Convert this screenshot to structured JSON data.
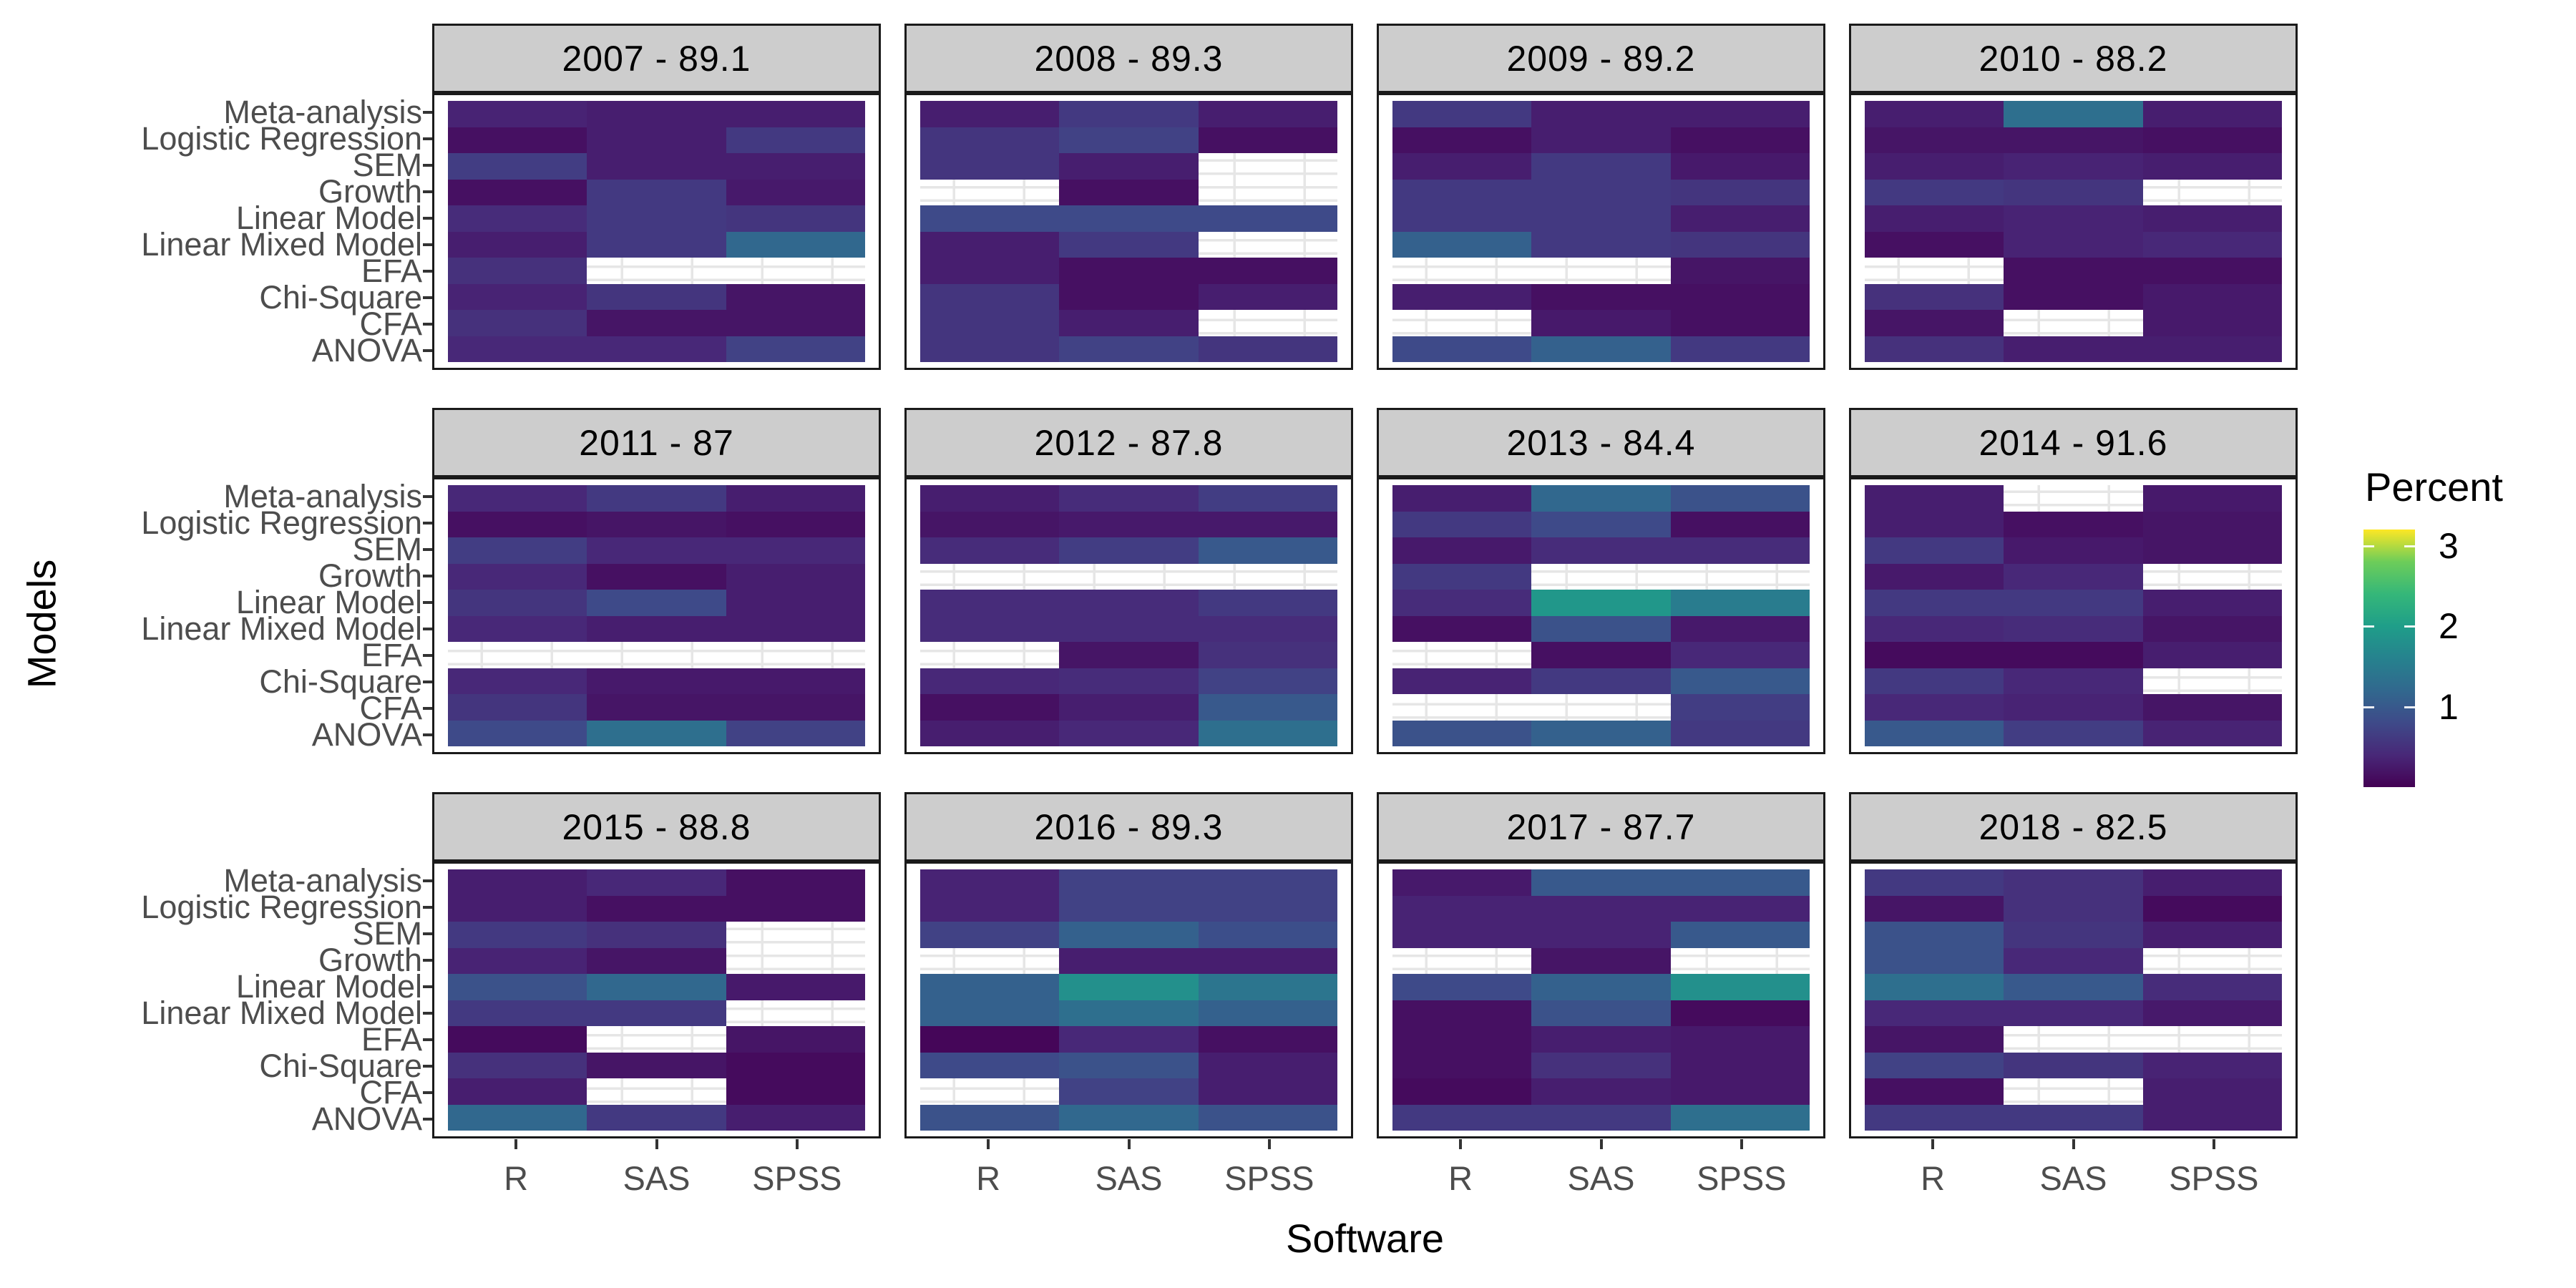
{
  "page": {
    "background": "#ffffff"
  },
  "chart": {
    "x_axis_title": "Software",
    "y_axis_title": "Models",
    "legend_title": "Percent"
  },
  "colors": {
    "strip_background": "#cdcdcd",
    "panel_border": "#1a1a1a",
    "grid_line": "#e6e6e6",
    "axis_text": "#4d4d4d",
    "title_text": "#000000",
    "na_cell": "#ffffff",
    "viridis_low": "#440154",
    "viridis_high": "#fde725"
  },
  "chart_data": {
    "type": "heatmap",
    "title": "",
    "xlabel": "Software",
    "ylabel": "Models",
    "grid": true,
    "legend_position": "right",
    "x_categories": [
      "R",
      "SAS",
      "SPSS"
    ],
    "y_categories": [
      "Meta-analysis",
      "Logistic Regression",
      "SEM",
      "Growth",
      "Linear Model",
      "Linear Mixed Model",
      "EFA",
      "Chi-Square",
      "CFA",
      "ANOVA"
    ],
    "legend": {
      "title": "Percent",
      "ticks": [
        3,
        2,
        1
      ],
      "domain": [
        0,
        3.2
      ],
      "palette": "viridis",
      "na_color": "#ffffff"
    },
    "facets": [
      {
        "label": "2007 - 89.1",
        "year": "2007",
        "percent": 89.1,
        "values": [
          [
            0.35,
            0.3,
            0.3
          ],
          [
            0.15,
            0.3,
            0.6
          ],
          [
            0.65,
            0.3,
            0.3
          ],
          [
            0.15,
            0.6,
            0.25
          ],
          [
            0.45,
            0.6,
            0.55
          ],
          [
            0.3,
            0.6,
            1.2
          ],
          [
            0.5,
            null,
            null
          ],
          [
            0.35,
            0.55,
            0.2
          ],
          [
            0.5,
            0.2,
            0.2
          ],
          [
            0.4,
            0.4,
            0.7
          ]
        ]
      },
      {
        "label": "2008 - 89.3",
        "year": "2008",
        "percent": 89.3,
        "values": [
          [
            0.3,
            0.6,
            0.3
          ],
          [
            0.55,
            0.7,
            0.15
          ],
          [
            0.55,
            0.3,
            null
          ],
          [
            null,
            0.15,
            null
          ],
          [
            0.8,
            0.8,
            0.8
          ],
          [
            0.3,
            0.6,
            null
          ],
          [
            0.3,
            0.15,
            0.15
          ],
          [
            0.55,
            0.15,
            0.3
          ],
          [
            0.55,
            0.3,
            null
          ],
          [
            0.55,
            0.7,
            0.55
          ]
        ]
      },
      {
        "label": "2009 - 89.2",
        "year": "2009",
        "percent": 89.2,
        "values": [
          [
            0.6,
            0.3,
            0.3
          ],
          [
            0.15,
            0.3,
            0.15
          ],
          [
            0.3,
            0.6,
            0.25
          ],
          [
            0.6,
            0.6,
            0.55
          ],
          [
            0.6,
            0.6,
            0.3
          ],
          [
            1.1,
            0.6,
            0.55
          ],
          [
            null,
            null,
            0.2
          ],
          [
            0.3,
            0.15,
            0.15
          ],
          [
            null,
            0.25,
            0.15
          ],
          [
            0.8,
            1.1,
            0.6
          ]
        ]
      },
      {
        "label": "2010 - 88.2",
        "year": "2010",
        "percent": 88.2,
        "values": [
          [
            0.3,
            1.3,
            0.3
          ],
          [
            0.2,
            0.2,
            0.15
          ],
          [
            0.3,
            0.35,
            0.3
          ],
          [
            0.6,
            0.55,
            null
          ],
          [
            0.3,
            0.35,
            0.3
          ],
          [
            0.15,
            0.35,
            0.4
          ],
          [
            null,
            0.15,
            0.15
          ],
          [
            0.5,
            0.15,
            0.25
          ],
          [
            0.2,
            null,
            0.25
          ],
          [
            0.5,
            0.3,
            0.3
          ]
        ]
      },
      {
        "label": "2011 - 87",
        "year": "2011",
        "percent": 87,
        "values": [
          [
            0.4,
            0.6,
            0.3
          ],
          [
            0.15,
            0.2,
            0.15
          ],
          [
            0.65,
            0.4,
            0.4
          ],
          [
            0.4,
            0.15,
            0.3
          ],
          [
            0.55,
            0.8,
            0.3
          ],
          [
            0.4,
            0.3,
            0.3
          ],
          [
            null,
            null,
            null
          ],
          [
            0.4,
            0.25,
            0.25
          ],
          [
            0.55,
            0.2,
            0.2
          ],
          [
            0.8,
            1.3,
            0.7
          ]
        ]
      },
      {
        "label": "2012 - 87.8",
        "year": "2012",
        "percent": 87.8,
        "values": [
          [
            0.3,
            0.45,
            0.65
          ],
          [
            0.2,
            0.25,
            0.25
          ],
          [
            0.45,
            0.65,
            1.0
          ],
          [
            null,
            null,
            null
          ],
          [
            0.45,
            0.45,
            0.6
          ],
          [
            0.45,
            0.45,
            0.45
          ],
          [
            null,
            0.2,
            0.5
          ],
          [
            0.4,
            0.45,
            0.7
          ],
          [
            0.15,
            0.3,
            1.0
          ],
          [
            0.3,
            0.4,
            1.3
          ]
        ]
      },
      {
        "label": "2013 - 84.4",
        "year": "2013",
        "percent": 84.4,
        "values": [
          [
            0.3,
            1.2,
            0.9
          ],
          [
            0.6,
            0.8,
            0.15
          ],
          [
            0.25,
            0.45,
            0.45
          ],
          [
            0.6,
            null,
            null
          ],
          [
            0.45,
            1.9,
            1.5
          ],
          [
            0.15,
            0.9,
            0.25
          ],
          [
            null,
            0.15,
            0.4
          ],
          [
            0.35,
            0.6,
            1.0
          ],
          [
            null,
            null,
            0.65
          ],
          [
            0.9,
            1.1,
            0.6
          ]
        ]
      },
      {
        "label": "2014 - 91.6",
        "year": "2014",
        "percent": 91.6,
        "values": [
          [
            0.3,
            null,
            0.25
          ],
          [
            0.3,
            0.15,
            0.2
          ],
          [
            0.6,
            0.25,
            0.2
          ],
          [
            0.25,
            0.4,
            null
          ],
          [
            0.6,
            0.6,
            0.3
          ],
          [
            0.4,
            0.45,
            0.2
          ],
          [
            0.1,
            0.1,
            0.3
          ],
          [
            0.6,
            0.4,
            null
          ],
          [
            0.4,
            0.35,
            0.2
          ],
          [
            1.0,
            0.65,
            0.35
          ]
        ]
      },
      {
        "label": "2015 - 88.8",
        "year": "2015",
        "percent": 88.8,
        "values": [
          [
            0.3,
            0.4,
            0.15
          ],
          [
            0.3,
            0.15,
            0.15
          ],
          [
            0.6,
            0.5,
            null
          ],
          [
            0.35,
            0.2,
            null
          ],
          [
            0.9,
            1.2,
            0.25
          ],
          [
            0.6,
            0.6,
            null
          ],
          [
            0.1,
            null,
            0.2
          ],
          [
            0.5,
            0.2,
            0.1
          ],
          [
            0.3,
            null,
            0.1
          ],
          [
            1.2,
            0.6,
            0.3
          ]
        ]
      },
      {
        "label": "2016 - 89.3",
        "year": "2016",
        "percent": 89.3,
        "values": [
          [
            0.35,
            0.7,
            0.7
          ],
          [
            0.35,
            0.7,
            0.7
          ],
          [
            0.7,
            1.1,
            0.85
          ],
          [
            null,
            0.3,
            0.3
          ],
          [
            1.1,
            1.8,
            1.4
          ],
          [
            1.1,
            1.3,
            1.1
          ],
          [
            0.05,
            0.4,
            0.15
          ],
          [
            0.8,
            0.9,
            0.3
          ],
          [
            null,
            0.7,
            0.3
          ],
          [
            0.9,
            1.2,
            0.9
          ]
        ]
      },
      {
        "label": "2017 - 87.7",
        "year": "2017",
        "percent": 87.7,
        "values": [
          [
            0.25,
            1.0,
            1.0
          ],
          [
            0.35,
            0.35,
            0.35
          ],
          [
            0.35,
            0.35,
            1.0
          ],
          [
            null,
            0.2,
            null
          ],
          [
            0.8,
            1.1,
            1.8
          ],
          [
            0.15,
            0.9,
            0.1
          ],
          [
            0.15,
            0.3,
            0.25
          ],
          [
            0.15,
            0.5,
            0.25
          ],
          [
            0.1,
            0.3,
            0.25
          ],
          [
            0.6,
            0.6,
            1.3
          ]
        ]
      },
      {
        "label": "2018 - 82.5",
        "year": "2018",
        "percent": 82.5,
        "values": [
          [
            0.6,
            0.5,
            0.3
          ],
          [
            0.2,
            0.5,
            0.1
          ],
          [
            0.9,
            0.55,
            0.3
          ],
          [
            0.9,
            0.4,
            null
          ],
          [
            1.3,
            1.0,
            0.45
          ],
          [
            0.4,
            0.4,
            0.25
          ],
          [
            0.2,
            null,
            null
          ],
          [
            0.7,
            0.55,
            0.35
          ],
          [
            0.15,
            null,
            0.3
          ],
          [
            0.6,
            0.6,
            0.3
          ]
        ]
      }
    ]
  }
}
